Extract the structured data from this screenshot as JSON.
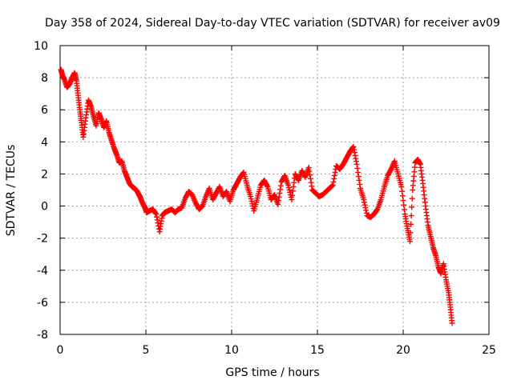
{
  "chart_data": {
    "type": "scatter",
    "title": "Day 358 of 2024, Sidereal Day-to-day VTEC variation (SDTVAR) for receiver av09",
    "xlabel": "GPS time / hours",
    "ylabel": "SDTVAR / TECUs",
    "xlim": [
      0,
      25
    ],
    "ylim": [
      -8,
      10
    ],
    "xticks": [
      "0",
      "5",
      "10",
      "15",
      "20",
      "25"
    ],
    "yticks": [
      "-8",
      "-6",
      "-4",
      "-2",
      "0",
      "2",
      "4",
      "6",
      "8",
      "10"
    ],
    "grid": true,
    "marker": "+",
    "color": "#ff0000",
    "series": [
      {
        "name": "SDTVAR",
        "x": [
          0.05,
          0.15,
          0.25,
          0.4,
          0.55,
          0.7,
          0.85,
          0.95,
          1.05,
          1.15,
          1.25,
          1.35,
          1.5,
          1.65,
          1.8,
          1.95,
          2.1,
          2.25,
          2.4,
          2.55,
          2.7,
          2.85,
          3.0,
          3.15,
          3.3,
          3.45,
          3.6,
          3.75,
          3.9,
          4.05,
          4.2,
          4.35,
          4.5,
          4.65,
          4.8,
          4.95,
          5.05,
          5.2,
          5.4,
          5.6,
          5.8,
          5.95,
          6.1,
          6.3,
          6.5,
          6.7,
          6.9,
          7.1,
          7.3,
          7.5,
          7.7,
          7.9,
          8.1,
          8.3,
          8.5,
          8.7,
          8.9,
          9.1,
          9.3,
          9.5,
          9.7,
          9.9,
          10.1,
          10.3,
          10.5,
          10.7,
          10.9,
          11.1,
          11.3,
          11.5,
          11.7,
          11.9,
          12.1,
          12.3,
          12.5,
          12.7,
          12.9,
          13.1,
          13.3,
          13.5,
          13.7,
          13.9,
          14.1,
          14.3,
          14.5,
          14.7,
          14.9,
          15.1,
          15.3,
          15.5,
          15.7,
          15.9,
          16.1,
          16.3,
          16.5,
          16.7,
          16.9,
          17.1,
          17.3,
          17.5,
          17.7,
          17.9,
          18.1,
          18.3,
          18.5,
          18.7,
          18.9,
          19.1,
          19.3,
          19.5,
          19.7,
          19.9,
          20.1,
          20.25,
          20.4,
          20.55,
          20.7,
          20.85,
          21.0,
          21.15,
          21.3,
          21.45,
          21.6,
          21.75,
          21.9,
          22.05,
          22.2,
          22.35,
          22.5,
          22.65,
          22.75,
          22.85
        ],
        "y": [
          8.5,
          8.1,
          7.9,
          7.4,
          7.6,
          8.0,
          8.3,
          7.8,
          6.9,
          6.0,
          5.2,
          4.3,
          5.5,
          6.6,
          6.2,
          5.6,
          5.0,
          5.8,
          5.4,
          4.9,
          5.3,
          4.6,
          4.1,
          3.6,
          3.2,
          2.7,
          2.8,
          2.2,
          1.8,
          1.4,
          1.2,
          1.1,
          0.9,
          0.6,
          0.2,
          -0.1,
          -0.4,
          -0.3,
          -0.2,
          -0.5,
          -1.6,
          -0.6,
          -0.4,
          -0.3,
          -0.2,
          -0.4,
          -0.2,
          -0.1,
          0.5,
          0.9,
          0.7,
          0.2,
          -0.2,
          0.0,
          0.6,
          1.1,
          0.4,
          0.8,
          1.2,
          0.6,
          0.9,
          0.3,
          1.0,
          1.4,
          1.8,
          2.1,
          1.3,
          0.6,
          -0.3,
          0.5,
          1.3,
          1.6,
          1.2,
          0.4,
          0.7,
          0.1,
          1.5,
          1.9,
          1.3,
          0.4,
          2.0,
          1.6,
          2.2,
          1.8,
          2.4,
          1.0,
          0.8,
          0.6,
          0.7,
          0.9,
          1.1,
          1.3,
          2.5,
          2.3,
          2.6,
          3.0,
          3.4,
          3.7,
          2.6,
          1.1,
          0.4,
          -0.6,
          -0.7,
          -0.5,
          -0.2,
          0.4,
          1.2,
          1.9,
          2.3,
          2.8,
          2.0,
          1.2,
          -0.5,
          -1.4,
          -2.2,
          1.0,
          2.7,
          2.9,
          2.6,
          1.4,
          0.0,
          -1.2,
          -1.9,
          -2.6,
          -3.1,
          -3.8,
          -4.2,
          -3.6,
          -4.6,
          -5.4,
          -6.3,
          -7.3
        ],
        "point_order": "time"
      }
    ]
  }
}
